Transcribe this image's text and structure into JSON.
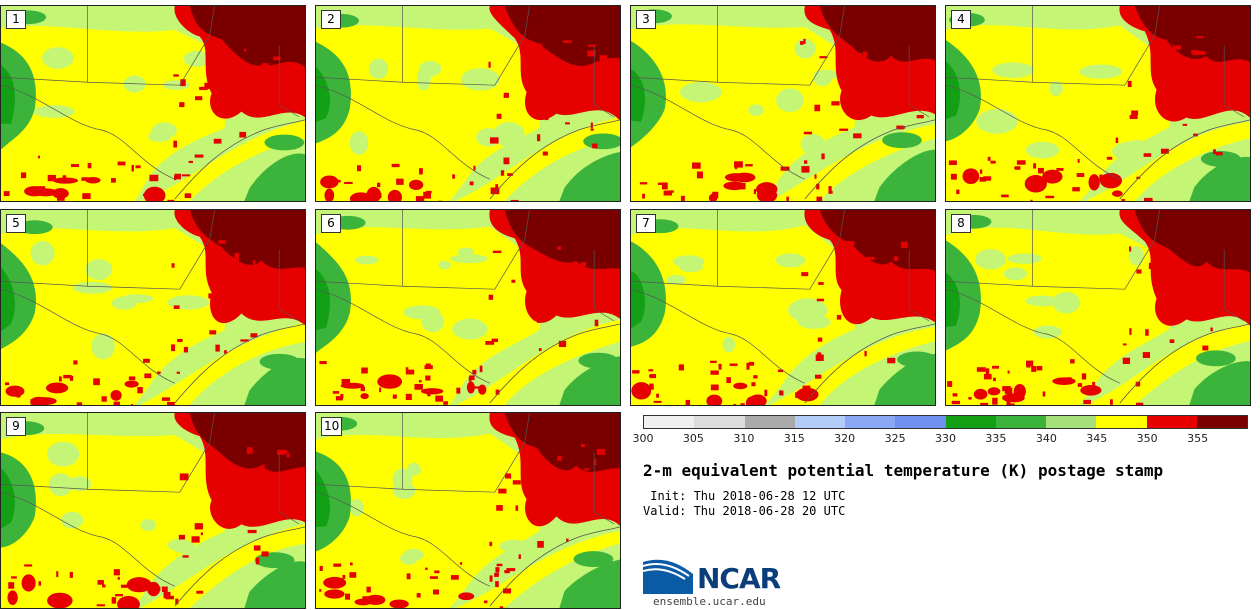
{
  "panels": [
    {
      "label": "1"
    },
    {
      "label": "2"
    },
    {
      "label": "3"
    },
    {
      "label": "4"
    },
    {
      "label": "5"
    },
    {
      "label": "6"
    },
    {
      "label": "7"
    },
    {
      "label": "8"
    },
    {
      "label": "9"
    },
    {
      "label": "10"
    }
  ],
  "colorbar": {
    "colors": [
      "#f0f0f0",
      "#dcdcdc",
      "#aaaaaa",
      "#b4ccf8",
      "#8aa8f5",
      "#7090ef",
      "#14a014",
      "#3cb43c",
      "#a6e07a",
      "#ffff00",
      "#e60000",
      "#7a0000"
    ],
    "ticks": [
      "300",
      "305",
      "310",
      "315",
      "320",
      "325",
      "330",
      "335",
      "340",
      "345",
      "350",
      "355"
    ]
  },
  "title": "2-m equivalent potential temperature (K) postage stamp",
  "init_line": " Init: Thu 2018-06-28 12 UTC",
  "valid_line": "Valid: Thu 2018-06-28 20 UTC",
  "logo": {
    "text": "NCAR",
    "url": "ensemble.ucar.edu"
  }
}
